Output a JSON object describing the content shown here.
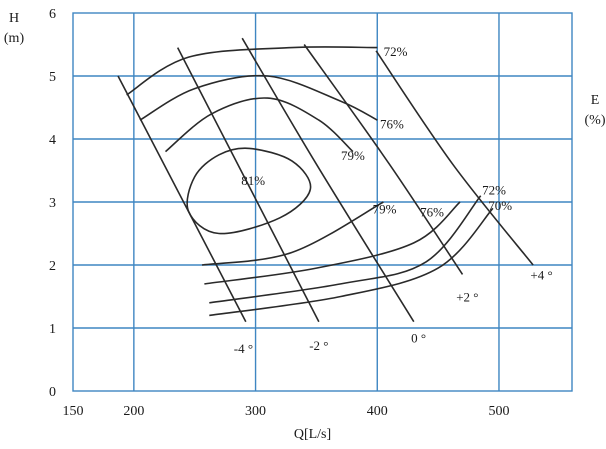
{
  "chart_data": {
    "type": "line",
    "title": "",
    "xlabel": "Q[L/s]",
    "ylabel_lines": [
      "H",
      "(m)"
    ],
    "right_label_lines": [
      "E",
      "(%)"
    ],
    "xlim": [
      150,
      560
    ],
    "ylim": [
      0,
      6
    ],
    "x_ticks": [
      150,
      200,
      300,
      400,
      500
    ],
    "y_ticks": [
      0,
      1,
      2,
      3,
      4,
      5,
      6
    ],
    "grid": true,
    "blade_angle_curves": [
      {
        "label": "-4 °",
        "points": [
          [
            187,
            5.0
          ],
          [
            292,
            1.1
          ]
        ],
        "label_at": [
          290,
          0.68
        ]
      },
      {
        "label": "-2 °",
        "points": [
          [
            236,
            5.45
          ],
          [
            352,
            1.1
          ]
        ],
        "label_at": [
          352,
          0.73
        ]
      },
      {
        "label": "0 °",
        "points": [
          [
            289,
            5.6
          ],
          [
            350,
            3.6
          ],
          [
            430,
            1.1
          ]
        ],
        "label_at": [
          434,
          0.85
        ]
      },
      {
        "label": "+2 °",
        "points": [
          [
            340,
            5.5
          ],
          [
            410,
            3.6
          ],
          [
            470,
            1.85
          ]
        ],
        "label_at": [
          474,
          1.5
        ]
      },
      {
        "label": "+4 °",
        "points": [
          [
            399,
            5.4
          ],
          [
            462,
            3.6
          ],
          [
            528,
            2.0
          ]
        ],
        "label_at": [
          535,
          1.85
        ]
      }
    ],
    "efficiency_curves": [
      {
        "label": "72%",
        "points": [
          [
            194,
            4.7
          ],
          [
            245,
            5.3
          ],
          [
            330,
            5.45
          ],
          [
            400,
            5.45
          ]
        ],
        "label_at": [
          415,
          5.4
        ]
      },
      {
        "label": "76%",
        "points": [
          [
            205,
            4.3
          ],
          [
            250,
            4.8
          ],
          [
            310,
            5.0
          ],
          [
            370,
            4.6
          ],
          [
            400,
            4.3
          ]
        ],
        "label_at": [
          412,
          4.25
        ]
      },
      {
        "label": "79%",
        "points": [
          [
            226,
            3.8
          ],
          [
            264,
            4.4
          ],
          [
            310,
            4.65
          ],
          [
            352,
            4.3
          ],
          [
            380,
            3.8
          ]
        ],
        "label_at": [
          380,
          3.75
        ]
      },
      {
        "label": "81%",
        "closed": true,
        "points": [
          [
            295,
            3.85
          ],
          [
            330,
            3.65
          ],
          [
            345,
            3.2
          ],
          [
            320,
            2.75
          ],
          [
            270,
            2.5
          ],
          [
            245,
            2.85
          ],
          [
            250,
            3.4
          ],
          [
            270,
            3.75
          ]
        ],
        "label_at": [
          298,
          3.35
        ]
      },
      {
        "label": "79%",
        "points": [
          [
            256,
            2.0
          ],
          [
            330,
            2.2
          ],
          [
            405,
            3.0
          ]
        ],
        "label_at": [
          406,
          2.9
        ]
      },
      {
        "label": "76%",
        "points": [
          [
            258,
            1.7
          ],
          [
            350,
            1.95
          ],
          [
            430,
            2.35
          ],
          [
            468,
            3.0
          ]
        ],
        "label_at": [
          445,
          2.85
        ]
      },
      {
        "label": "72%",
        "points": [
          [
            262,
            1.4
          ],
          [
            370,
            1.7
          ],
          [
            440,
            2.05
          ],
          [
            485,
            3.1
          ]
        ],
        "label_at": [
          496,
          3.2
        ]
      },
      {
        "label": "70%",
        "points": [
          [
            262,
            1.2
          ],
          [
            370,
            1.5
          ],
          [
            450,
            1.95
          ],
          [
            495,
            2.9
          ]
        ],
        "label_at": [
          501,
          2.95
        ]
      }
    ]
  }
}
